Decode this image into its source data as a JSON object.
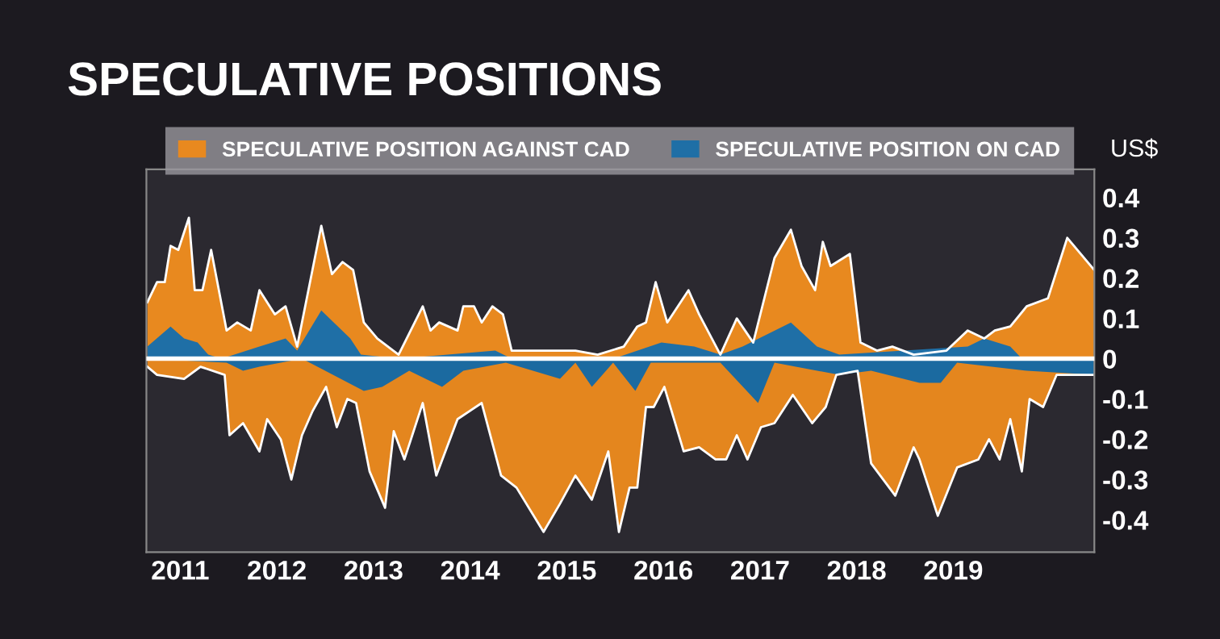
{
  "chart_data": {
    "type": "area",
    "title": "SPECULATIVE POSITIONS",
    "ylabel": "US$",
    "xlim": [
      2010.65,
      2020.46
    ],
    "xticks": [
      2011,
      2012,
      2013,
      2014,
      2015,
      2016,
      2017,
      2018,
      2019
    ],
    "ylim": [
      -0.48,
      0.47
    ],
    "yticks": [
      -0.4,
      -0.3,
      -0.2,
      -0.1,
      0,
      0.1,
      0.2,
      0.3,
      0.4
    ],
    "grid": false,
    "legend": "top",
    "ref_lines": [
      {
        "axis": "y",
        "value": 0,
        "color": "#ffffff"
      }
    ],
    "series": [
      {
        "name": "SPECULATIVE POSITION AGAINST CAD",
        "color": "#e8891f",
        "x": [
          2010.66,
          2010.76,
          2010.84,
          2010.9,
          2010.98,
          2011.09,
          2011.15,
          2011.23,
          2011.32,
          2011.48,
          2011.59,
          2011.73,
          2011.82,
          2011.98,
          2012.09,
          2012.21,
          2012.46,
          2012.57,
          2012.68,
          2012.79,
          2012.9,
          2013.04,
          2013.15,
          2013.26,
          2013.51,
          2013.59,
          2013.68,
          2013.87,
          2013.93,
          2014.04,
          2014.12,
          2014.23,
          2014.34,
          2014.43,
          2014.93,
          2015.09,
          2015.32,
          2015.59,
          2015.73,
          2015.82,
          2015.92,
          2016.04,
          2016.26,
          2016.37,
          2016.59,
          2016.76,
          2016.93,
          2017.15,
          2017.32,
          2017.43,
          2017.57,
          2017.65,
          2017.73,
          2017.93,
          2018.04,
          2018.21,
          2018.37,
          2018.59,
          2018.93,
          2019.15,
          2019.32,
          2019.43,
          2019.59,
          2019.76,
          2019.98,
          2020.18,
          2020.46
        ],
        "values": [
          0.14,
          0.19,
          0.19,
          0.28,
          0.27,
          0.35,
          0.17,
          0.17,
          0.27,
          0.07,
          0.09,
          0.07,
          0.17,
          0.11,
          0.13,
          0.03,
          0.33,
          0.21,
          0.24,
          0.22,
          0.09,
          0.05,
          0.03,
          0.01,
          0.13,
          0.07,
          0.09,
          0.07,
          0.13,
          0.13,
          0.09,
          0.13,
          0.11,
          0.02,
          0.02,
          0.02,
          0.01,
          0.03,
          0.08,
          0.09,
          0.19,
          0.09,
          0.17,
          0.11,
          0.01,
          0.1,
          0.04,
          0.25,
          0.32,
          0.23,
          0.17,
          0.29,
          0.23,
          0.26,
          0.04,
          0.02,
          0.03,
          0.01,
          0.02,
          0.07,
          0.05,
          0.07,
          0.08,
          0.13,
          0.15,
          0.3,
          0.22
        ]
      },
      {
        "color": "#e4861e",
        "x": [
          2010.66,
          2010.76,
          2011.04,
          2011.21,
          2011.46,
          2011.51,
          2011.65,
          2011.82,
          2011.9,
          2012.04,
          2012.15,
          2012.26,
          2012.37,
          2012.51,
          2012.62,
          2012.73,
          2012.82,
          2012.96,
          2013.12,
          2013.21,
          2013.32,
          2013.51,
          2013.65,
          2013.87,
          2014.12,
          2014.32,
          2014.48,
          2014.76,
          2014.93,
          2015.09,
          2015.26,
          2015.43,
          2015.54,
          2015.65,
          2015.73,
          2015.82,
          2015.9,
          2016.01,
          2016.21,
          2016.37,
          2016.54,
          2016.65,
          2016.76,
          2016.87,
          2017.01,
          2017.15,
          2017.34,
          2017.54,
          2017.68,
          2017.79,
          2018.01,
          2018.15,
          2018.4,
          2018.59,
          2018.65,
          2018.84,
          2019.04,
          2019.26,
          2019.37,
          2019.48,
          2019.59,
          2019.71,
          2019.79,
          2019.93,
          2020.07,
          2020.46
        ],
        "values": [
          -0.02,
          -0.04,
          -0.05,
          -0.02,
          -0.04,
          -0.19,
          -0.16,
          -0.23,
          -0.15,
          -0.2,
          -0.3,
          -0.19,
          -0.13,
          -0.07,
          -0.17,
          -0.1,
          -0.11,
          -0.28,
          -0.37,
          -0.18,
          -0.25,
          -0.11,
          -0.29,
          -0.15,
          -0.11,
          -0.29,
          -0.32,
          -0.43,
          -0.36,
          -0.29,
          -0.35,
          -0.23,
          -0.43,
          -0.32,
          -0.32,
          -0.12,
          -0.12,
          -0.07,
          -0.23,
          -0.22,
          -0.25,
          -0.25,
          -0.19,
          -0.25,
          -0.17,
          -0.16,
          -0.09,
          -0.16,
          -0.12,
          -0.04,
          -0.03,
          -0.26,
          -0.34,
          -0.22,
          -0.25,
          -0.39,
          -0.27,
          -0.25,
          -0.2,
          -0.25,
          -0.15,
          -0.28,
          -0.1,
          -0.12,
          -0.04,
          -0.04
        ]
      },
      {
        "name": "SPECULATIVE POSITION ON CAD",
        "color": "#1f6fa6",
        "x": [
          2010.66,
          2010.9,
          2011.04,
          2011.18,
          2011.29,
          2011.43,
          2011.82,
          2012.09,
          2012.21,
          2012.46,
          2012.76,
          2012.87,
          2013.26,
          2014.26,
          2014.43,
          2015.48,
          2015.98,
          2016.32,
          2016.59,
          2016.82,
          2017.32,
          2017.59,
          2017.82,
          2019.15,
          2019.32,
          2019.59,
          2019.71,
          2020.46
        ],
        "values": [
          0.03,
          0.08,
          0.05,
          0.04,
          0.01,
          0,
          0.03,
          0.05,
          0.02,
          0.12,
          0.05,
          0.01,
          0,
          0.02,
          0,
          0,
          0.04,
          0.03,
          0.01,
          0.03,
          0.09,
          0.03,
          0.01,
          0.03,
          0.05,
          0.03,
          0,
          0
        ]
      },
      {
        "color": "#1b6aa0",
        "x": [
          2010.66,
          2011.48,
          2011.65,
          2011.82,
          2012.26,
          2012.9,
          2013.09,
          2013.37,
          2013.71,
          2013.93,
          2014.37,
          2014.93,
          2015.09,
          2015.26,
          2015.48,
          2015.71,
          2015.87,
          2016.37,
          2016.59,
          2016.98,
          2017.15,
          2017.82,
          2018.15,
          2018.65,
          2018.87,
          2019.04,
          2019.76,
          2020.46
        ],
        "values": [
          0,
          -0.01,
          -0.03,
          -0.02,
          0,
          -0.08,
          -0.07,
          -0.03,
          -0.07,
          -0.03,
          -0.01,
          -0.05,
          -0.01,
          -0.07,
          -0.01,
          -0.08,
          -0.01,
          -0.01,
          -0.01,
          -0.11,
          -0.01,
          -0.04,
          -0.03,
          -0.06,
          -0.06,
          -0.01,
          -0.03,
          -0.04
        ]
      }
    ]
  }
}
